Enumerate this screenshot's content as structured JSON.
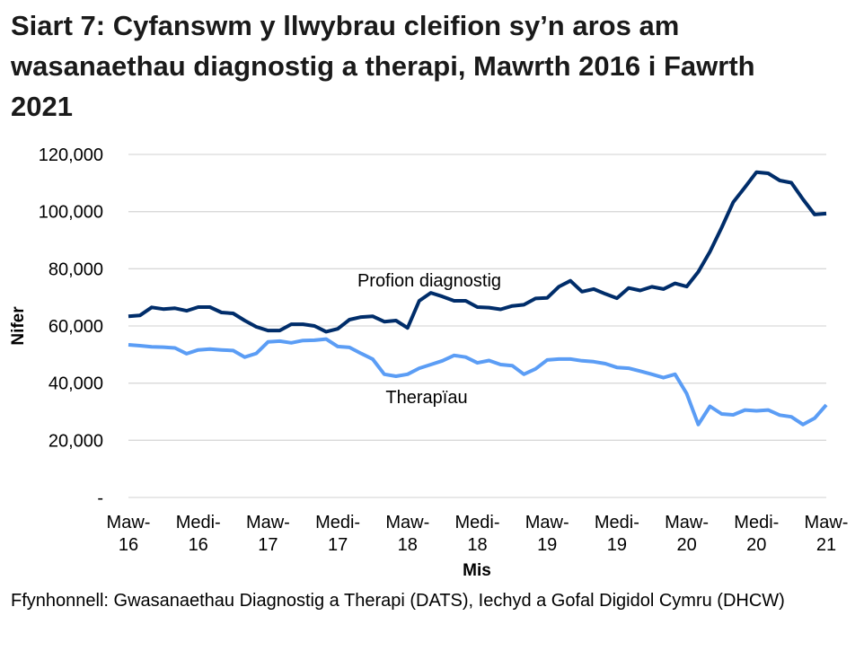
{
  "chart_data": {
    "type": "line",
    "title": "Siart 7: Cyfanswm y llwybrau cleifion sy’n aros am wasanaethau diagnostig a therapi, Mawrth 2016 i Fawrth 2021",
    "xlabel": "Mis",
    "ylabel": "Nifer",
    "ylim": [
      0,
      120000
    ],
    "yticks": [
      0,
      20000,
      40000,
      60000,
      80000,
      100000,
      120000
    ],
    "ytick_labels": [
      "-",
      "20,000",
      "40,000",
      "60,000",
      "80,000",
      "100,000",
      "120,000"
    ],
    "x_start": "Maw-16",
    "x_end": "Maw-21",
    "xtick_labels": [
      [
        "Maw-",
        "16"
      ],
      [
        "Medi-",
        "16"
      ],
      [
        "Maw-",
        "17"
      ],
      [
        "Medi-",
        "17"
      ],
      [
        "Maw-",
        "18"
      ],
      [
        "Medi-",
        "18"
      ],
      [
        "Maw-",
        "19"
      ],
      [
        "Medi-",
        "19"
      ],
      [
        "Maw-",
        "20"
      ],
      [
        "Medi-",
        "20"
      ],
      [
        "Maw-",
        "21"
      ]
    ],
    "grid": true,
    "legend": "none (direct labels on lines)",
    "series": [
      {
        "name": "Profion diagnostig",
        "color": "#002D6A",
        "values": [
          63400,
          63700,
          66500,
          65900,
          66200,
          65300,
          66600,
          66600,
          64700,
          64400,
          61900,
          59700,
          58400,
          58400,
          60600,
          60600,
          60000,
          58000,
          59000,
          62200,
          63100,
          63400,
          61500,
          61900,
          59300,
          68800,
          71600,
          70300,
          68800,
          68800,
          66600,
          66400,
          65800,
          67000,
          67400,
          69600,
          69800,
          73700,
          75800,
          72000,
          72900,
          71200,
          69700,
          73300,
          72400,
          73700,
          72900,
          74900,
          73800,
          78900,
          86000,
          94400,
          103300,
          108500,
          113800,
          113400,
          110900,
          110100,
          104300,
          99000,
          99300
        ]
      },
      {
        "name": "Therapïau",
        "color": "#5B9DF5",
        "values": [
          53400,
          53100,
          52700,
          52600,
          52300,
          50300,
          51600,
          51900,
          51600,
          51400,
          49100,
          50400,
          54400,
          54700,
          54100,
          54900,
          55000,
          55400,
          52800,
          52500,
          50400,
          48400,
          43100,
          42400,
          43100,
          45200,
          46500,
          47800,
          49700,
          49100,
          47100,
          47900,
          46500,
          46100,
          43100,
          45000,
          48100,
          48400,
          48400,
          47800,
          47500,
          46800,
          45500,
          45200,
          44200,
          43100,
          41900,
          43100,
          36300,
          25500,
          31900,
          29200,
          28900,
          30600,
          30300,
          30600,
          28800,
          28200,
          25500,
          27700,
          32400
        ]
      }
    ]
  },
  "source": "Ffynhonnell: Gwasanaethau Diagnostig a Therapi (DATS), Iechyd a Gofal Digidol Cymru (DHCW)"
}
